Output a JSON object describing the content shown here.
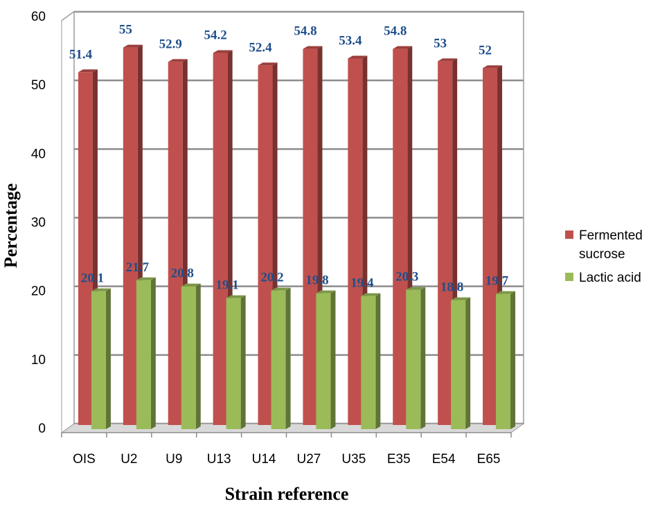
{
  "chart_data": {
    "type": "bar",
    "title": "",
    "xlabel": "Strain reference",
    "ylabel": "Percentage",
    "ylim": [
      0,
      60
    ],
    "yticks": [
      "0",
      "10",
      "20",
      "30",
      "40",
      "50",
      "60"
    ],
    "categories": [
      "OIS",
      "U2",
      "U9",
      "U13",
      "U14",
      "U27",
      "U35",
      "E35",
      "E54",
      "E65"
    ],
    "series": [
      {
        "name": "Fermented sucrose",
        "legend_lines": [
          "Fermented",
          "sucrose"
        ],
        "color": "#c0504d",
        "values": [
          51.4,
          55,
          52.9,
          54.2,
          52.4,
          54.8,
          53.4,
          54.8,
          53,
          52
        ],
        "labels": [
          "51.4",
          "55",
          "52.9",
          "54.2",
          "52.4",
          "54.8",
          "53.4",
          "54.8",
          "53",
          "52"
        ]
      },
      {
        "name": "Lactic acid",
        "legend_lines": [
          "Lactic acid"
        ],
        "color": "#9bbb59",
        "values": [
          20.1,
          21.7,
          20.8,
          19.1,
          20.2,
          19.8,
          19.4,
          20.3,
          18.8,
          19.7
        ],
        "labels": [
          "20.1",
          "21.7",
          "20.8",
          "19.1",
          "20.2",
          "19.8",
          "19.4",
          "20.3",
          "18.8",
          "19.7"
        ]
      }
    ],
    "data_label_color": "#1f4e8c",
    "grid": true,
    "legend_position": "right",
    "style": "3d-column"
  }
}
